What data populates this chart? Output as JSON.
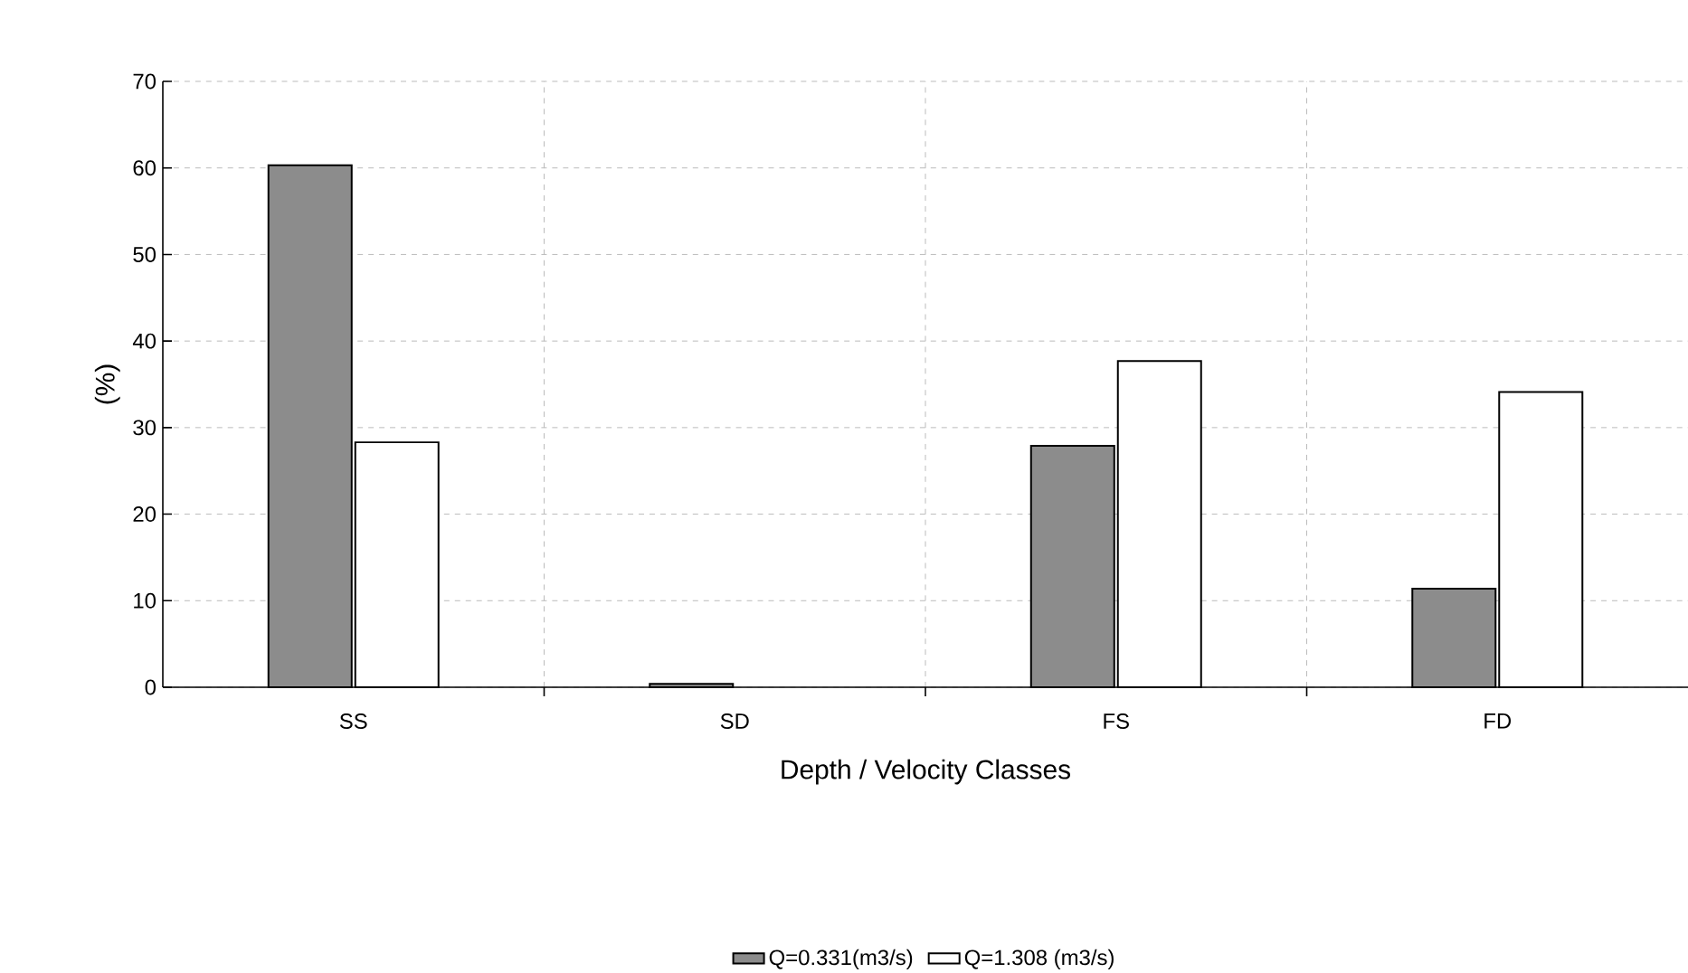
{
  "chart_data": {
    "type": "bar",
    "xlabel": "Depth / Velocity Classes",
    "ylabel": "(%)",
    "categories": [
      "SS",
      "SD",
      "FS",
      "FD"
    ],
    "series": [
      {
        "name": "Q=0.331(m3/s)",
        "color": "#8c8c8c",
        "values": [
          60.3,
          0.4,
          27.9,
          11.4
        ]
      },
      {
        "name": "Q=1.308 (m3/s)",
        "color": "#ffffff",
        "values": [
          28.3,
          null,
          37.7,
          34.1
        ]
      }
    ],
    "ylim": [
      0,
      70
    ],
    "yticks": [
      0,
      10,
      20,
      30,
      40,
      50,
      60,
      70
    ],
    "grid": true,
    "legend": "bottom"
  }
}
